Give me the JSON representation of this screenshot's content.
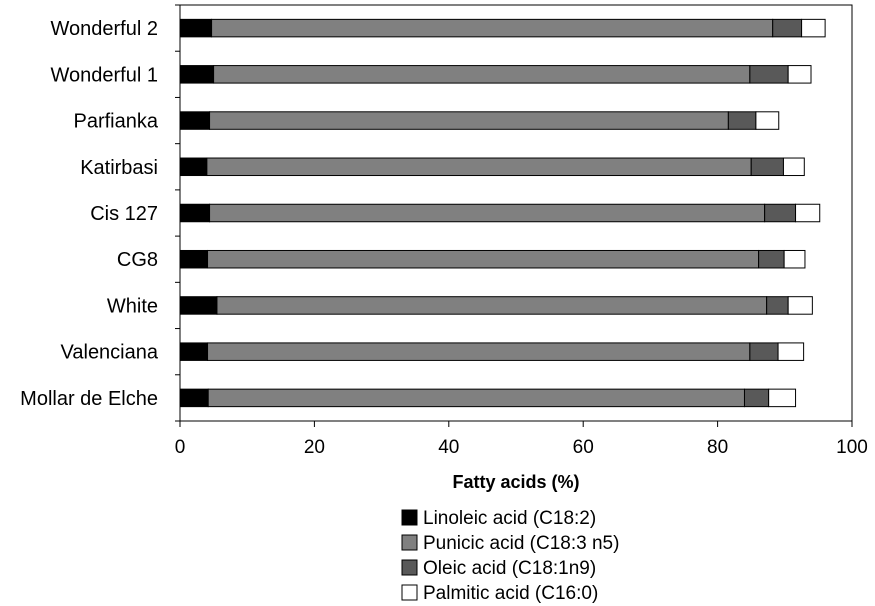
{
  "chart_data": {
    "type": "bar",
    "orientation": "horizontal",
    "stacked": true,
    "categories": [
      "Wonderful 2",
      "Wonderful 1",
      "Parfianka",
      "Katirbasi",
      "Cis 127",
      "CG8",
      "White",
      "Valenciana",
      "Mollar de Elche"
    ],
    "series": [
      {
        "name": "Linoleic acid (C18:2)",
        "color": "#000000",
        "values": [
          4.7,
          5.0,
          4.4,
          4.0,
          4.4,
          4.1,
          5.5,
          4.1,
          4.2
        ]
      },
      {
        "name": "Punicic acid (C18:3 n5)",
        "color": "#808080",
        "values": [
          83.5,
          79.8,
          77.2,
          81.0,
          82.6,
          82.0,
          81.8,
          80.7,
          79.8
        ]
      },
      {
        "name": "Oleic acid (C18:1n9)",
        "color": "#595959",
        "values": [
          4.3,
          5.7,
          4.1,
          4.8,
          4.6,
          3.8,
          3.2,
          4.2,
          3.6
        ]
      },
      {
        "name": "Palmitic acid (C16:0)",
        "color": "#ffffff",
        "values": [
          3.5,
          3.4,
          3.4,
          3.1,
          3.6,
          3.1,
          3.6,
          3.8,
          4.0
        ]
      }
    ],
    "xlabel": "Fatty acids (%)",
    "ylabel": "",
    "xlim": [
      0,
      100
    ],
    "xticks": [
      "0",
      "20",
      "40",
      "60",
      "80",
      "100"
    ],
    "grid": false,
    "legend_position": "bottom"
  }
}
